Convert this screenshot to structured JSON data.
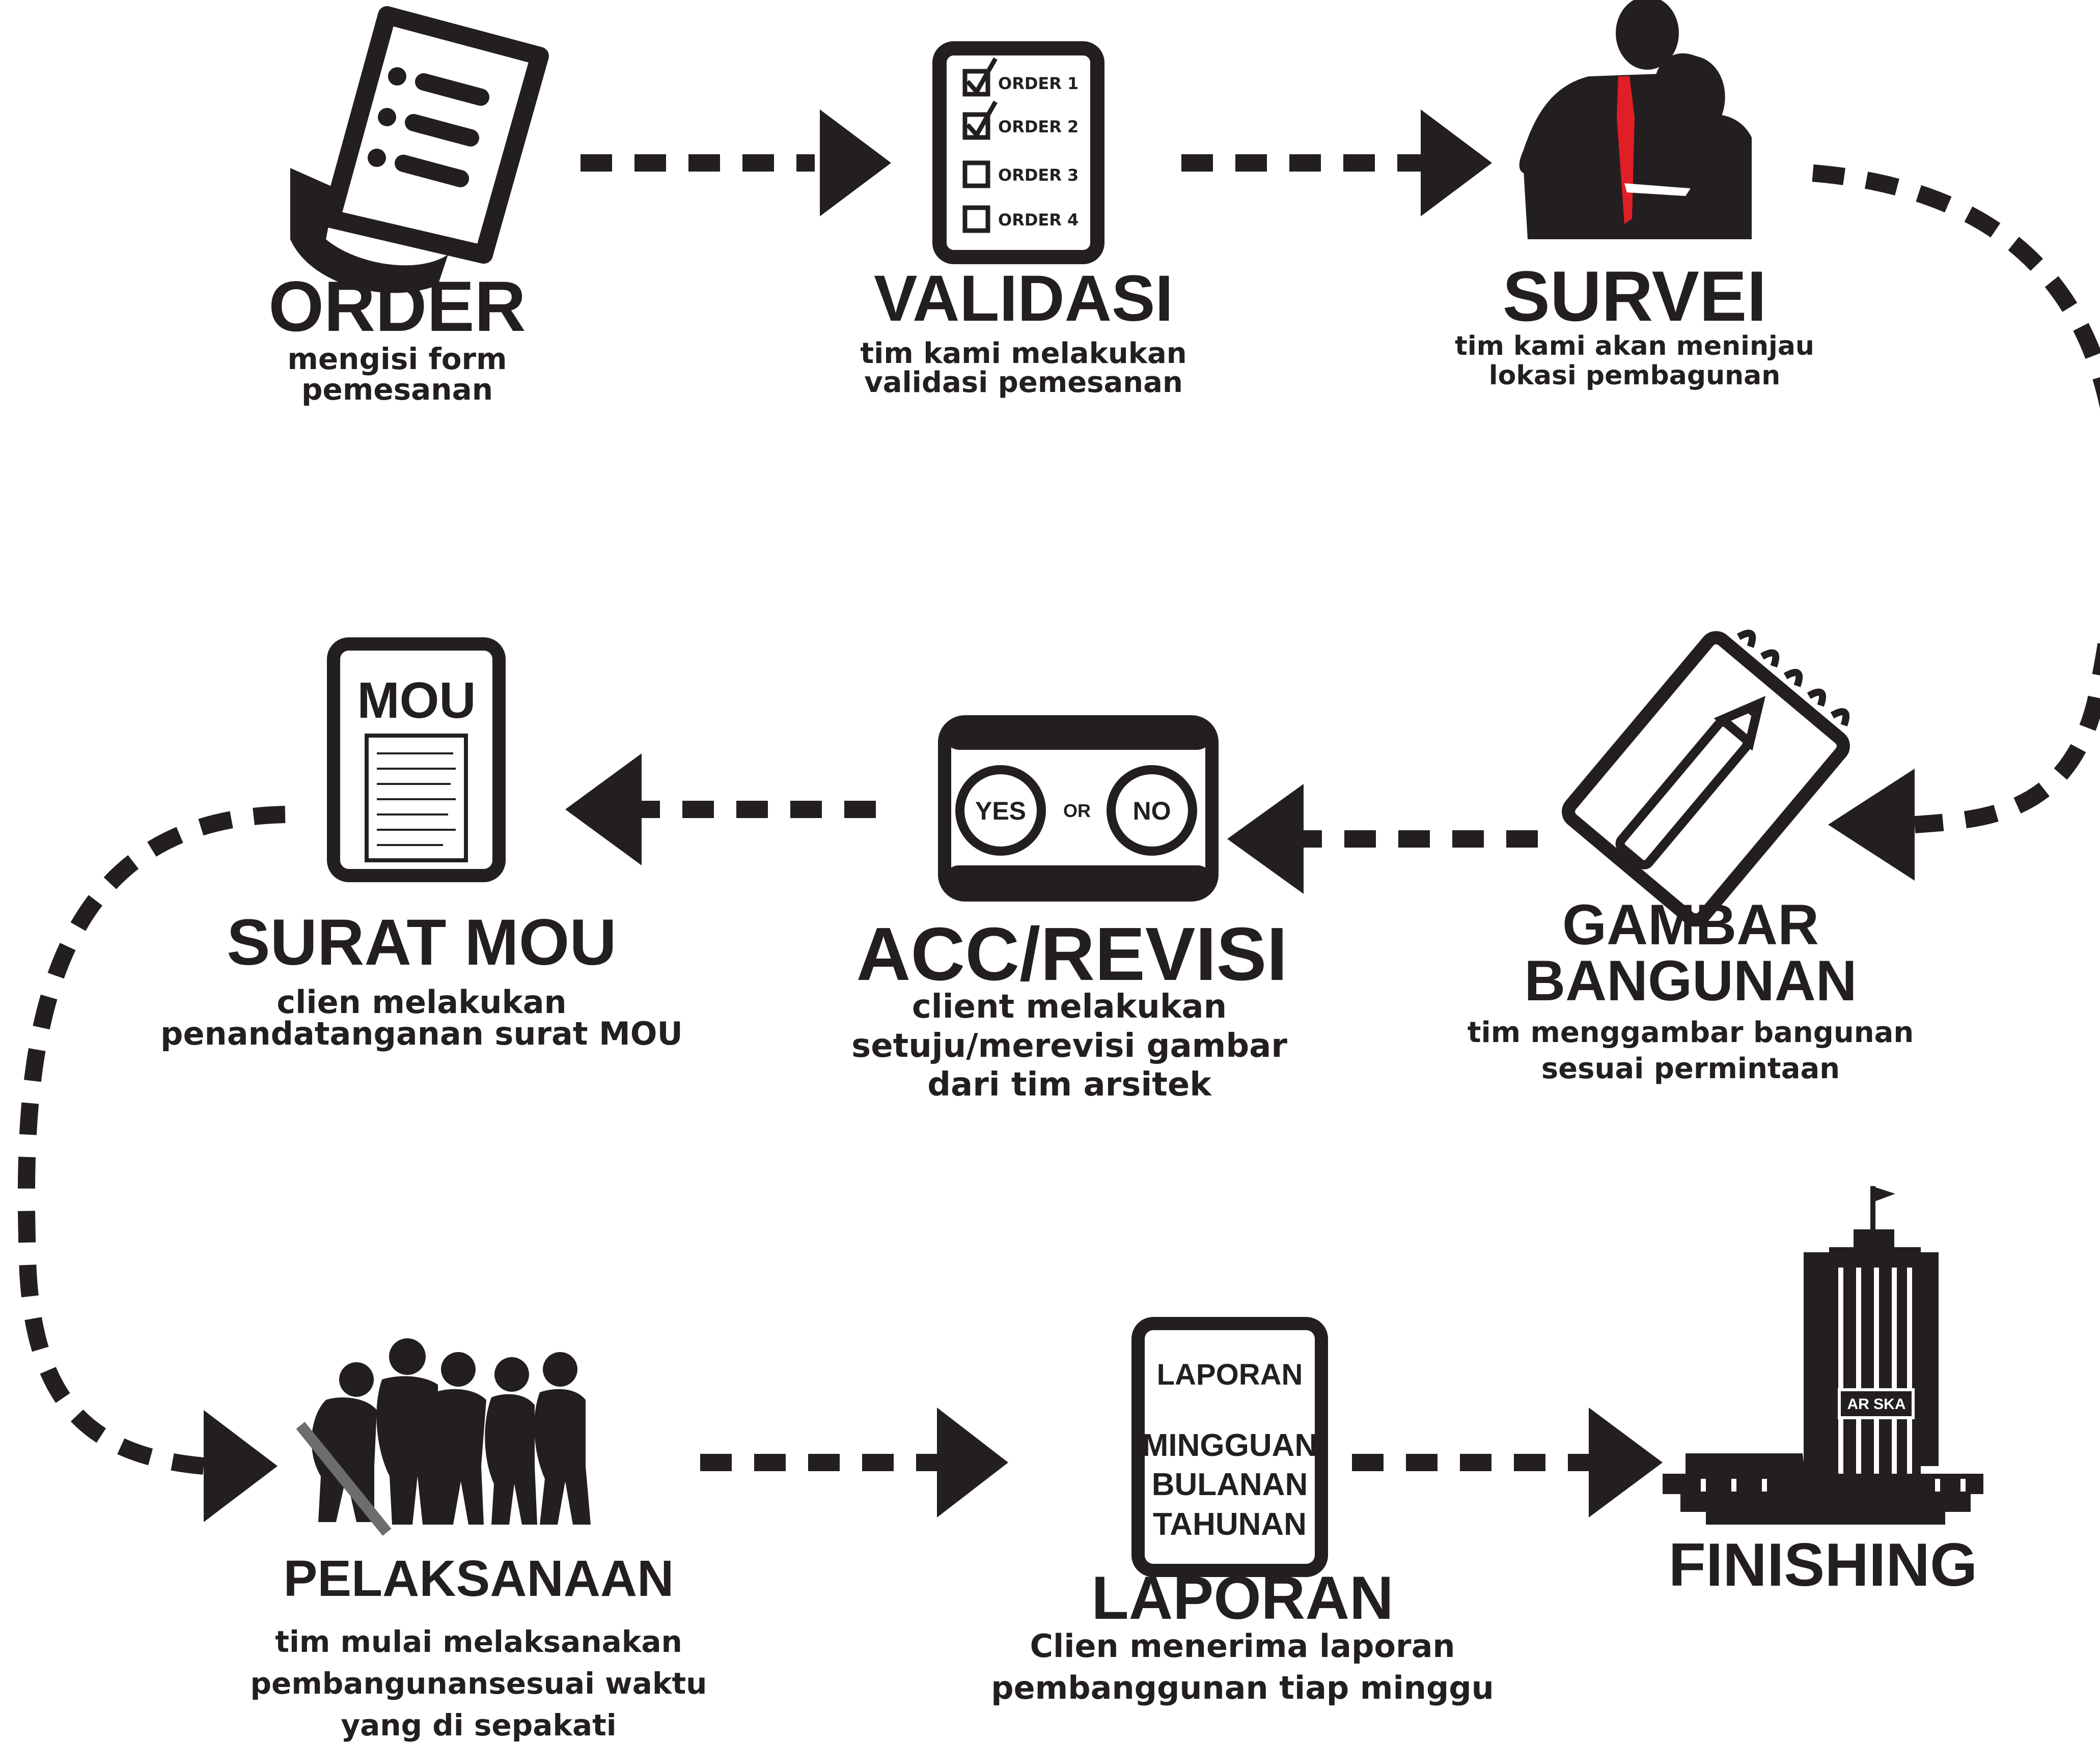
{
  "colors": {
    "ink": "#231f20",
    "tie": "#e11e26",
    "background": "#ffffff"
  },
  "steps": {
    "order": {
      "title": "ORDER",
      "sub1": "mengisi form",
      "sub2": "pemesanan",
      "icon": "order-form-document-icon"
    },
    "validasi": {
      "title": "VALIDASI",
      "sub1": "tim kami melakukan",
      "sub2": "validasi pemesanan",
      "icon": "checklist-icon",
      "checklist": [
        {
          "label": "ORDER 1",
          "checked": true
        },
        {
          "label": "ORDER 2",
          "checked": true
        },
        {
          "label": "ORDER 3",
          "checked": false
        },
        {
          "label": "ORDER 4",
          "checked": false
        }
      ]
    },
    "survei": {
      "title": "SURVEI",
      "sub1": "tim kami akan meninjau",
      "sub2": "lokasi pembagunan",
      "icon": "business-people-silhouette-icon"
    },
    "gambar": {
      "title1": "GAMBAR",
      "title2": "BANGUNAN",
      "sub1": "tim menggambar bangunan",
      "sub2": "sesuai permintaan",
      "icon": "notepad-pencil-icon"
    },
    "acc": {
      "title": "ACC/REVISI",
      "sub1": "client melakukan",
      "sub2": "setuju/merevisi gambar",
      "sub3": "dari tim arsitek",
      "icon": "yes-or-no-window-icon",
      "yes": "YES",
      "or": "OR",
      "no": "NO"
    },
    "mou": {
      "title": "SURAT MOU",
      "sub1": "clien melakukan",
      "sub2": "penandatanganan surat MOU",
      "icon": "mou-document-icon",
      "doc_label": "MOU"
    },
    "pelaksanaan": {
      "title": "PELAKSANAAN",
      "sub1": "tim mulai melaksanakan",
      "sub2": "pembangunansesuai waktu",
      "sub3": "yang di sepakati",
      "icon": "construction-workers-silhouette-icon"
    },
    "laporan": {
      "title": "LAPORAN",
      "sub1": "Clien menerima laporan",
      "sub2": "pembanggunan tiap minggu",
      "icon": "report-document-icon",
      "doc_title": "LAPORAN",
      "doc_lines": [
        "MINGGUAN",
        "BULANAN",
        "TAHUNAN"
      ]
    },
    "finishing": {
      "title": "FINISHING",
      "icon": "building-tower-icon",
      "sign": "AR SKA"
    }
  }
}
